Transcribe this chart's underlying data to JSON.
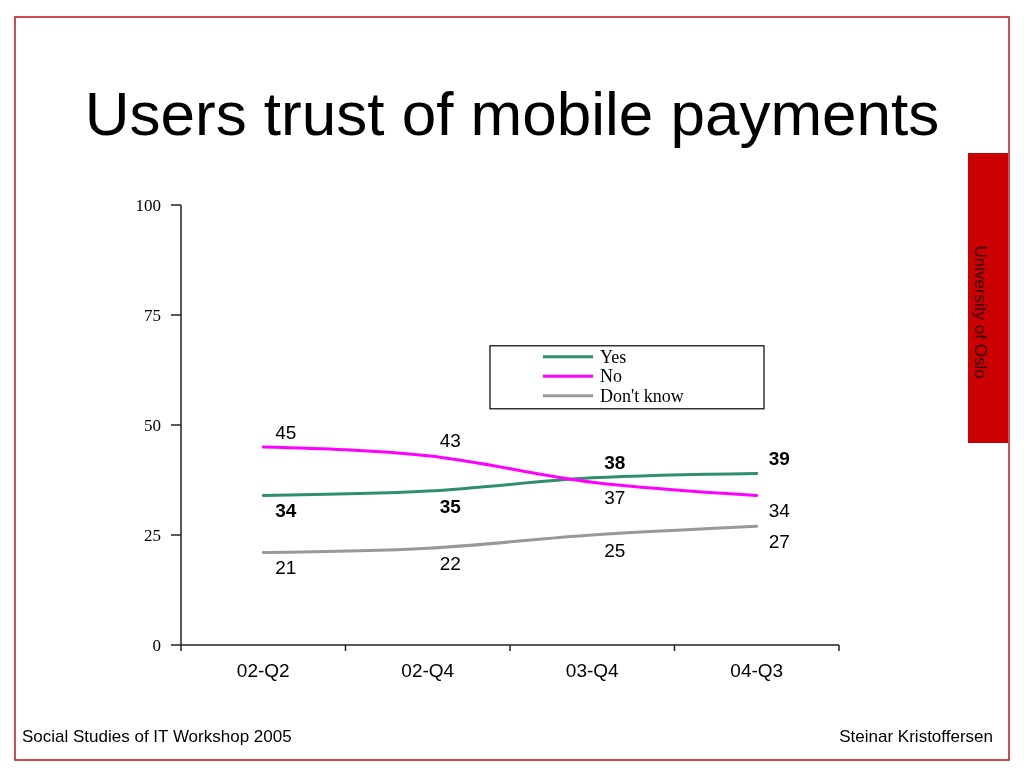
{
  "chart_data": {
    "type": "line",
    "title": "Users trust of mobile payments",
    "categories": [
      "02-Q2",
      "02-Q4",
      "03-Q4",
      "04-Q3"
    ],
    "series": [
      {
        "name": "Yes",
        "color": "#2f8f6a",
        "values": [
          34,
          35,
          38,
          39
        ]
      },
      {
        "name": "No",
        "color": "#ff00ff",
        "values": [
          45,
          43,
          37,
          34
        ]
      },
      {
        "name": "Don't know",
        "color": "#999999",
        "values": [
          21,
          22,
          25,
          27
        ]
      }
    ],
    "ylim": [
      0,
      100
    ],
    "yticks": [
      0,
      25,
      50,
      75,
      100
    ],
    "data_labels": true,
    "legend": "right",
    "marker": "none",
    "line_style": "solid",
    "annotations": [
      "University of Oslo",
      "Social Studies of IT Workshop 2005",
      "Steinar Kristoffersen"
    ]
  }
}
